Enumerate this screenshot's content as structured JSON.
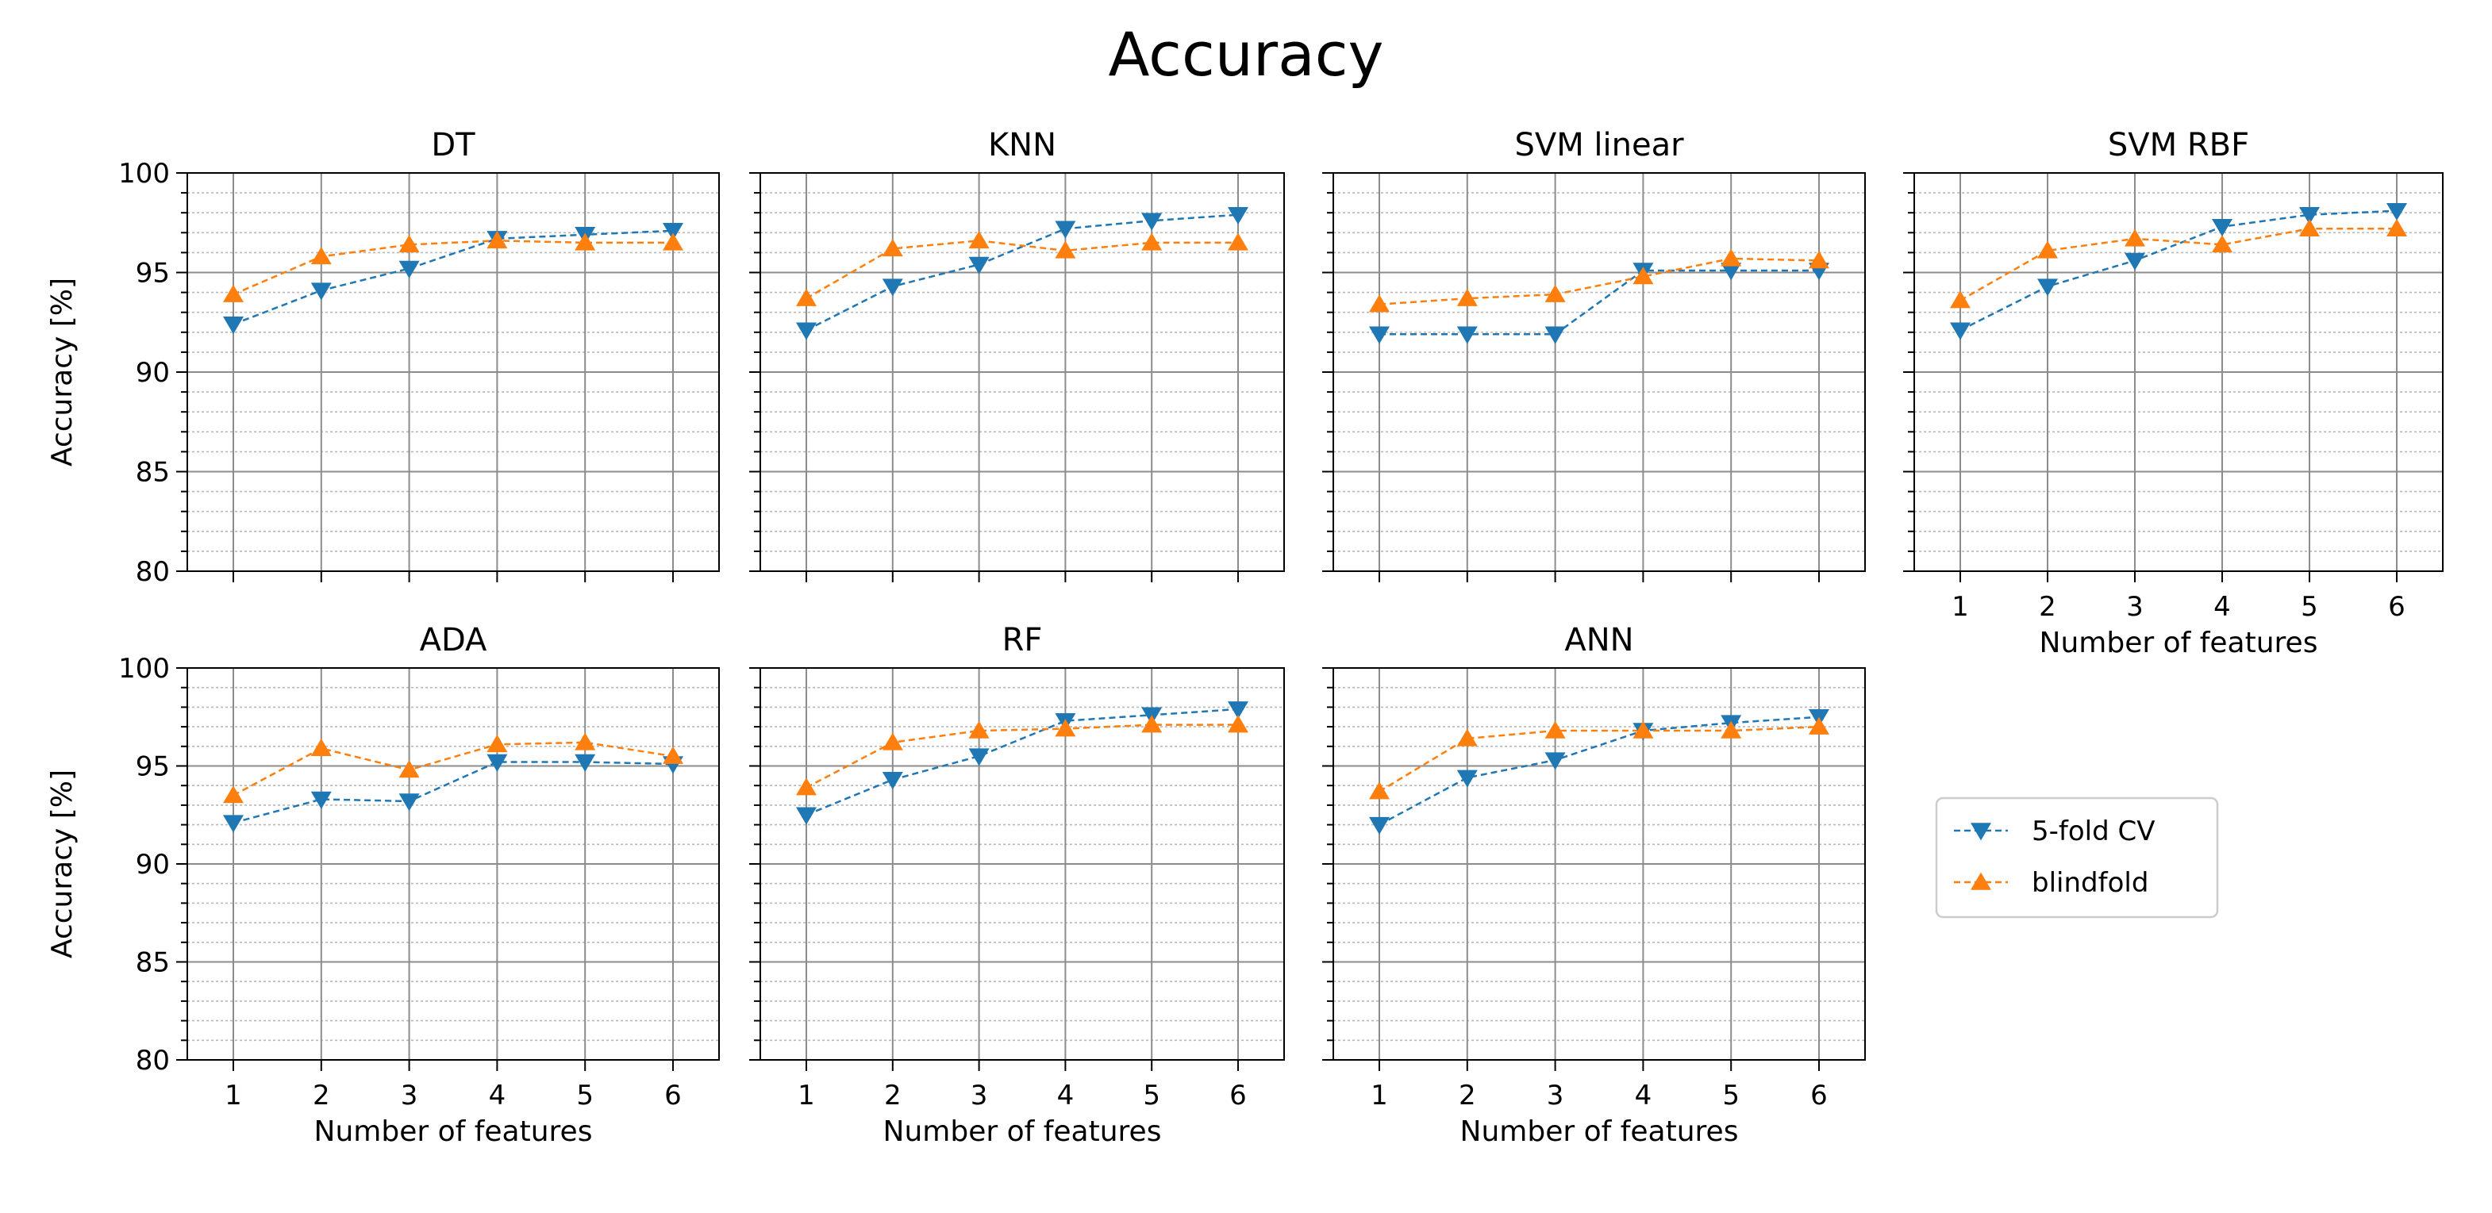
{
  "figure_title": "Accuracy",
  "colors": {
    "cv": "#1f77b4",
    "blind": "#ff7f0e"
  },
  "legend": {
    "cv_label": "5-fold CV",
    "blind_label": "blindfold",
    "placement": "center-right"
  },
  "axis_text": {
    "ylabel": "Accuracy [%]",
    "xlabel": "Number of features"
  },
  "chart_data": [
    {
      "type": "line",
      "title": "DT",
      "xlabel": "",
      "ylabel": "Accuracy [%]",
      "ylim": [
        80,
        100
      ],
      "x": [
        1,
        2,
        3,
        4,
        5,
        6
      ],
      "x_ticks": [
        "1",
        "2",
        "3",
        "4",
        "5",
        "6"
      ],
      "y_ticks": [
        "80",
        "85",
        "90",
        "95",
        "100"
      ],
      "series": [
        {
          "name": "5-fold CV",
          "values": [
            92.4,
            94.1,
            95.2,
            96.7,
            96.9,
            97.1
          ]
        },
        {
          "name": "blindfold",
          "values": [
            93.9,
            95.8,
            96.4,
            96.6,
            96.5,
            96.5
          ]
        }
      ]
    },
    {
      "type": "line",
      "title": "KNN",
      "xlabel": "",
      "ylabel": "",
      "ylim": [
        80,
        100
      ],
      "x": [
        1,
        2,
        3,
        4,
        5,
        6
      ],
      "x_ticks": [
        "1",
        "2",
        "3",
        "4",
        "5",
        "6"
      ],
      "y_ticks": [],
      "series": [
        {
          "name": "5-fold CV",
          "values": [
            92.1,
            94.3,
            95.4,
            97.2,
            97.6,
            97.9
          ]
        },
        {
          "name": "blindfold",
          "values": [
            93.7,
            96.2,
            96.6,
            96.1,
            96.5,
            96.5
          ]
        }
      ]
    },
    {
      "type": "line",
      "title": "SVM linear",
      "xlabel": "",
      "ylabel": "",
      "ylim": [
        80,
        100
      ],
      "x": [
        1,
        2,
        3,
        4,
        5,
        6
      ],
      "x_ticks": [
        "1",
        "2",
        "3",
        "4",
        "5",
        "6"
      ],
      "y_ticks": [],
      "series": [
        {
          "name": "5-fold CV",
          "values": [
            91.9,
            91.9,
            91.9,
            95.1,
            95.1,
            95.1
          ]
        },
        {
          "name": "blindfold",
          "values": [
            93.4,
            93.7,
            93.9,
            94.8,
            95.7,
            95.6
          ]
        }
      ]
    },
    {
      "type": "line",
      "title": "SVM RBF",
      "xlabel": "Number of features",
      "ylabel": "",
      "ylim": [
        80,
        100
      ],
      "x": [
        1,
        2,
        3,
        4,
        5,
        6
      ],
      "x_ticks": [
        "1",
        "2",
        "3",
        "4",
        "5",
        "6"
      ],
      "y_ticks": [],
      "series": [
        {
          "name": "5-fold CV",
          "values": [
            92.1,
            94.3,
            95.6,
            97.3,
            97.9,
            98.1
          ]
        },
        {
          "name": "blindfold",
          "values": [
            93.6,
            96.1,
            96.7,
            96.4,
            97.2,
            97.2
          ]
        }
      ]
    },
    {
      "type": "line",
      "title": "ADA",
      "xlabel": "Number of features",
      "ylabel": "Accuracy [%]",
      "ylim": [
        80,
        100
      ],
      "x": [
        1,
        2,
        3,
        4,
        5,
        6
      ],
      "x_ticks": [
        "1",
        "2",
        "3",
        "4",
        "5",
        "6"
      ],
      "y_ticks": [
        "80",
        "85",
        "90",
        "95",
        "100"
      ],
      "series": [
        {
          "name": "5-fold CV",
          "values": [
            92.1,
            93.3,
            93.2,
            95.2,
            95.2,
            95.1
          ]
        },
        {
          "name": "blindfold",
          "values": [
            93.5,
            95.9,
            94.8,
            96.1,
            96.2,
            95.5
          ]
        }
      ]
    },
    {
      "type": "line",
      "title": "RF",
      "xlabel": "Number of features",
      "ylabel": "",
      "ylim": [
        80,
        100
      ],
      "x": [
        1,
        2,
        3,
        4,
        5,
        6
      ],
      "x_ticks": [
        "1",
        "2",
        "3",
        "4",
        "5",
        "6"
      ],
      "y_ticks": [],
      "series": [
        {
          "name": "5-fold CV",
          "values": [
            92.5,
            94.3,
            95.5,
            97.3,
            97.6,
            97.9
          ]
        },
        {
          "name": "blindfold",
          "values": [
            93.9,
            96.2,
            96.8,
            96.9,
            97.1,
            97.1
          ]
        }
      ]
    },
    {
      "type": "line",
      "title": "ANN",
      "xlabel": "Number of features",
      "ylabel": "",
      "ylim": [
        80,
        100
      ],
      "x": [
        1,
        2,
        3,
        4,
        5,
        6
      ],
      "x_ticks": [
        "1",
        "2",
        "3",
        "4",
        "5",
        "6"
      ],
      "y_ticks": [],
      "series": [
        {
          "name": "5-fold CV",
          "values": [
            92.0,
            94.4,
            95.3,
            96.8,
            97.2,
            97.5
          ]
        },
        {
          "name": "blindfold",
          "values": [
            93.7,
            96.4,
            96.8,
            96.8,
            96.8,
            97.0
          ]
        }
      ]
    }
  ]
}
